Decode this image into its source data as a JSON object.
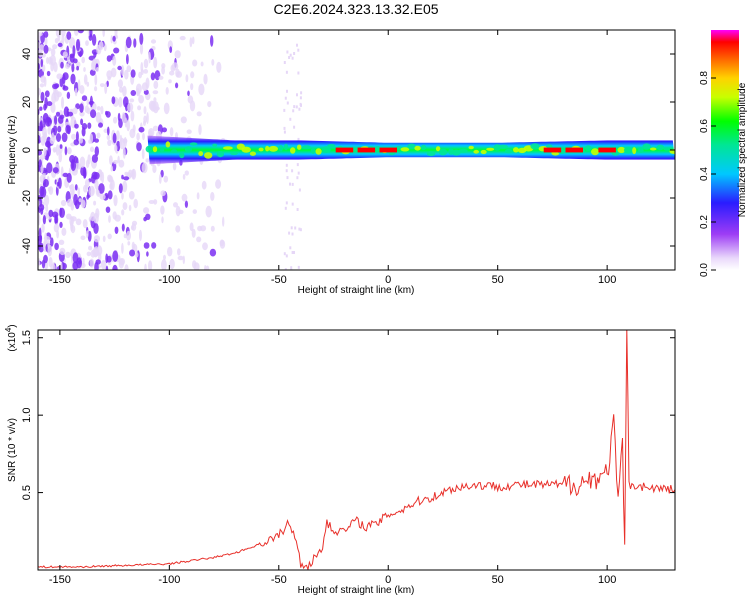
{
  "figure": {
    "title": "C2E6.2024.323.13.32.E05"
  },
  "chart_data": [
    {
      "type": "heatmap",
      "xlabel": "Height of straight line (km)",
      "ylabel": "Frequency (Hz)",
      "xlim": [
        -160,
        131
      ],
      "ylim": [
        -50,
        50
      ],
      "xticks": [
        -150,
        -100,
        -50,
        0,
        50,
        100
      ],
      "yticks": [
        -40,
        -20,
        0,
        20,
        40
      ],
      "colorbar": {
        "label": "Normalized spectral amplitude",
        "range": [
          0,
          1
        ],
        "ticks": [
          "0.0",
          "0.2",
          "0.4",
          "0.6",
          "0.8"
        ]
      },
      "colors": {
        "low": "#e6d7f7",
        "mid": "#7b2ff2",
        "high": "#ff0000"
      },
      "band": {
        "center_hz": 0,
        "halfwidth_hz_at": [
          [
            -110,
            6
          ],
          [
            -70,
            4
          ],
          [
            -40,
            4
          ],
          [
            0,
            3
          ],
          [
            50,
            3
          ],
          [
            100,
            4
          ],
          [
            131,
            4
          ]
        ],
        "hotspots_km": [
          -20,
          -10,
          0,
          75,
          85,
          100
        ]
      },
      "noise_region_km": [
        -160,
        -85
      ]
    },
    {
      "type": "line",
      "xlabel": "Height of straight line (km)",
      "ylabel": "SNR (10 * v/v)",
      "y_multiplier": "(x10",
      "y_multiplier_exp": "4",
      "xlim": [
        -160,
        131
      ],
      "ylim": [
        0,
        1.55
      ],
      "xticks": [
        -150,
        -100,
        -50,
        0,
        50,
        100
      ],
      "yticks": [
        "0.5",
        "1.0",
        "1.5"
      ],
      "series": [
        {
          "color": "#e8302a",
          "x": [
            -160,
            -140,
            -120,
            -100,
            -90,
            -80,
            -70,
            -60,
            -55,
            -50,
            -46,
            -44,
            -42,
            -40,
            -36,
            -30,
            -28,
            -26,
            -20,
            -15,
            -10,
            -5,
            0,
            5,
            10,
            15,
            20,
            25,
            30,
            35,
            40,
            50,
            60,
            70,
            80,
            90,
            95,
            100,
            103,
            105,
            107,
            108,
            109,
            110,
            112,
            120,
            131
          ],
          "y": [
            0.02,
            0.02,
            0.03,
            0.04,
            0.06,
            0.08,
            0.11,
            0.16,
            0.19,
            0.22,
            0.3,
            0.25,
            0.2,
            0.04,
            0.03,
            0.15,
            0.32,
            0.26,
            0.25,
            0.32,
            0.28,
            0.3,
            0.36,
            0.38,
            0.42,
            0.45,
            0.47,
            0.5,
            0.53,
            0.54,
            0.55,
            0.54,
            0.55,
            0.55,
            0.55,
            0.57,
            0.6,
            0.62,
            0.95,
            0.4,
            0.85,
            0.1,
            1.55,
            0.55,
            0.55,
            0.53,
            0.52
          ]
        }
      ]
    }
  ]
}
